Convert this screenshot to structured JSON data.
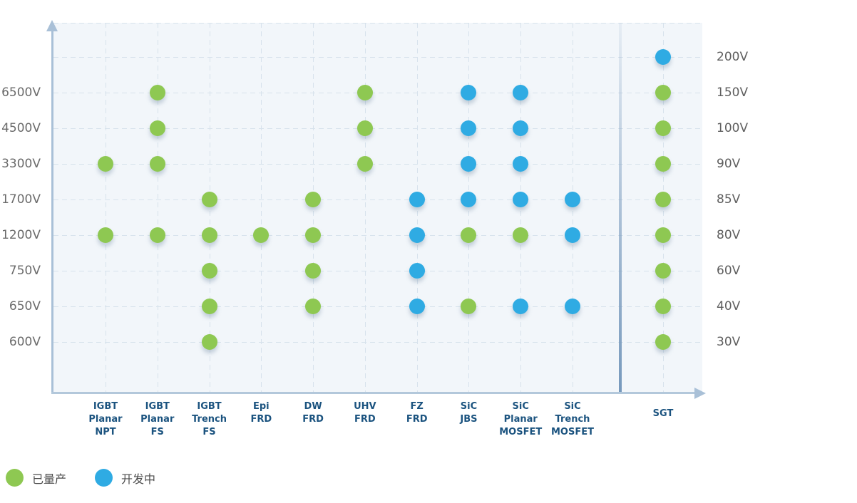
{
  "legend": {
    "items": [
      {
        "label": "已量产",
        "status": "production"
      },
      {
        "label": "开发中",
        "status": "development"
      }
    ]
  },
  "chart_data": {
    "type": "scatter",
    "title": "",
    "grid": true,
    "legend_position": "bottom-left",
    "status_colors": {
      "production": "#8ec852",
      "development": "#2fabe3"
    },
    "rows": [
      {
        "left_label": "",
        "right_label": "200V"
      },
      {
        "left_label": "6500V",
        "right_label": "150V"
      },
      {
        "left_label": "4500V",
        "right_label": "100V"
      },
      {
        "left_label": "3300V",
        "right_label": "90V"
      },
      {
        "left_label": "1700V",
        "right_label": "85V"
      },
      {
        "left_label": "1200V",
        "right_label": "80V"
      },
      {
        "left_label": "750V",
        "right_label": "60V"
      },
      {
        "left_label": "650V",
        "right_label": "40V"
      },
      {
        "left_label": "600V",
        "right_label": "30V"
      }
    ],
    "columns": [
      {
        "name": "IGBT Planar NPT",
        "label_lines": [
          "IGBT",
          "Planar",
          "NPT"
        ],
        "scale": "left",
        "section": "main",
        "points": [
          {
            "voltage": "3300V",
            "status": "production"
          },
          {
            "voltage": "1200V",
            "status": "production"
          }
        ]
      },
      {
        "name": "IGBT Planar FS",
        "label_lines": [
          "IGBT",
          "Planar",
          "FS"
        ],
        "scale": "left",
        "section": "main",
        "points": [
          {
            "voltage": "6500V",
            "status": "production"
          },
          {
            "voltage": "4500V",
            "status": "production"
          },
          {
            "voltage": "3300V",
            "status": "production"
          },
          {
            "voltage": "1200V",
            "status": "production"
          }
        ]
      },
      {
        "name": "IGBT Trench FS",
        "label_lines": [
          "IGBT",
          "Trench",
          "FS"
        ],
        "scale": "left",
        "section": "main",
        "points": [
          {
            "voltage": "1700V",
            "status": "production"
          },
          {
            "voltage": "1200V",
            "status": "production"
          },
          {
            "voltage": "750V",
            "status": "production"
          },
          {
            "voltage": "650V",
            "status": "production"
          },
          {
            "voltage": "600V",
            "status": "production"
          }
        ]
      },
      {
        "name": "Epi FRD",
        "label_lines": [
          "Epi",
          "FRD"
        ],
        "scale": "left",
        "section": "main",
        "points": [
          {
            "voltage": "1200V",
            "status": "production"
          }
        ]
      },
      {
        "name": "DW FRD",
        "label_lines": [
          "DW",
          "FRD"
        ],
        "scale": "left",
        "section": "main",
        "points": [
          {
            "voltage": "1700V",
            "status": "production"
          },
          {
            "voltage": "1200V",
            "status": "production"
          },
          {
            "voltage": "750V",
            "status": "production"
          },
          {
            "voltage": "650V",
            "status": "production"
          }
        ]
      },
      {
        "name": "UHV FRD",
        "label_lines": [
          "UHV",
          "FRD"
        ],
        "scale": "left",
        "section": "main",
        "points": [
          {
            "voltage": "6500V",
            "status": "production"
          },
          {
            "voltage": "4500V",
            "status": "production"
          },
          {
            "voltage": "3300V",
            "status": "production"
          }
        ]
      },
      {
        "name": "FZ FRD",
        "label_lines": [
          "FZ",
          "FRD"
        ],
        "scale": "left",
        "section": "main",
        "points": [
          {
            "voltage": "1700V",
            "status": "development"
          },
          {
            "voltage": "1200V",
            "status": "development"
          },
          {
            "voltage": "750V",
            "status": "development"
          },
          {
            "voltage": "650V",
            "status": "development"
          }
        ]
      },
      {
        "name": "SiC JBS",
        "label_lines": [
          "SiC",
          "JBS"
        ],
        "scale": "left",
        "section": "main",
        "points": [
          {
            "voltage": "6500V",
            "status": "development"
          },
          {
            "voltage": "4500V",
            "status": "development"
          },
          {
            "voltage": "3300V",
            "status": "development"
          },
          {
            "voltage": "1700V",
            "status": "development"
          },
          {
            "voltage": "1200V",
            "status": "production"
          },
          {
            "voltage": "650V",
            "status": "production"
          }
        ]
      },
      {
        "name": "SiC Planar MOSFET",
        "label_lines": [
          "SiC",
          "Planar",
          "MOSFET"
        ],
        "scale": "left",
        "section": "main",
        "points": [
          {
            "voltage": "6500V",
            "status": "development"
          },
          {
            "voltage": "4500V",
            "status": "development"
          },
          {
            "voltage": "3300V",
            "status": "development"
          },
          {
            "voltage": "1700V",
            "status": "development"
          },
          {
            "voltage": "1200V",
            "status": "production"
          },
          {
            "voltage": "650V",
            "status": "development"
          }
        ]
      },
      {
        "name": "SiC Trench MOSFET",
        "label_lines": [
          "SiC",
          "Trench",
          "MOSFET"
        ],
        "scale": "left",
        "section": "main",
        "points": [
          {
            "voltage": "1700V",
            "status": "development"
          },
          {
            "voltage": "1200V",
            "status": "development"
          },
          {
            "voltage": "650V",
            "status": "development"
          }
        ]
      },
      {
        "name": "SGT",
        "label_lines": [
          "SGT"
        ],
        "scale": "right",
        "section": "sgt",
        "points": [
          {
            "voltage": "200V",
            "status": "development"
          },
          {
            "voltage": "150V",
            "status": "production"
          },
          {
            "voltage": "100V",
            "status": "production"
          },
          {
            "voltage": "90V",
            "status": "production"
          },
          {
            "voltage": "85V",
            "status": "production"
          },
          {
            "voltage": "80V",
            "status": "production"
          },
          {
            "voltage": "60V",
            "status": "production"
          },
          {
            "voltage": "40V",
            "status": "production"
          },
          {
            "voltage": "30V",
            "status": "production"
          }
        ]
      }
    ]
  }
}
